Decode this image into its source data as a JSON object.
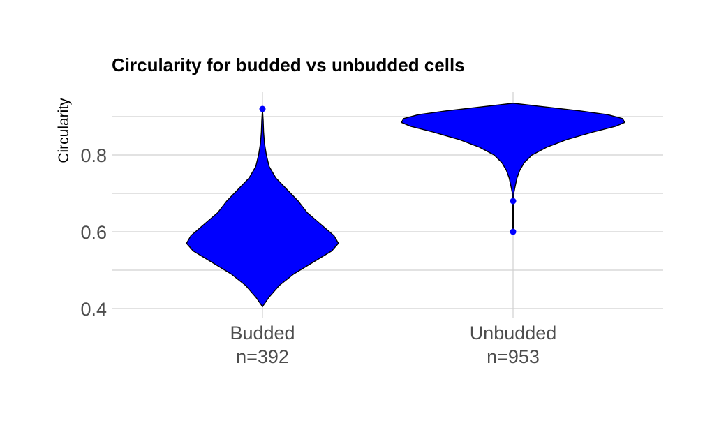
{
  "chart_data": {
    "type": "violin",
    "title": "Circularity for budded vs unbudded cells",
    "xlabel": "",
    "ylabel": "Circularity",
    "ylim": [
      0.38,
      0.96
    ],
    "yticks": [
      0.4,
      0.6,
      0.8
    ],
    "y_minor_gridlines": [
      0.5,
      0.7,
      0.9
    ],
    "grid": true,
    "fill_color": "#0000ff",
    "outline_color": "#000000",
    "categories": [
      {
        "label": "Budded",
        "count_label": "n=392",
        "n": 392,
        "y_min": 0.405,
        "y_max": 0.92,
        "density_profile": [
          [
            0.405,
            0.0
          ],
          [
            0.41,
            0.012
          ],
          [
            0.43,
            0.06
          ],
          [
            0.46,
            0.15
          ],
          [
            0.49,
            0.28
          ],
          [
            0.52,
            0.45
          ],
          [
            0.55,
            0.62
          ],
          [
            0.57,
            0.68
          ],
          [
            0.59,
            0.64
          ],
          [
            0.62,
            0.52
          ],
          [
            0.65,
            0.4
          ],
          [
            0.68,
            0.32
          ],
          [
            0.71,
            0.22
          ],
          [
            0.74,
            0.12
          ],
          [
            0.77,
            0.06
          ],
          [
            0.8,
            0.035
          ],
          [
            0.83,
            0.018
          ],
          [
            0.86,
            0.01
          ],
          [
            0.89,
            0.006
          ],
          [
            0.92,
            0.0
          ]
        ],
        "outliers": [
          0.92
        ]
      },
      {
        "label": "Unbudded",
        "count_label": "n=953",
        "n": 953,
        "y_min": 0.6,
        "y_max": 0.935,
        "density_profile": [
          [
            0.6,
            0.0
          ],
          [
            0.62,
            0.004
          ],
          [
            0.65,
            0.004
          ],
          [
            0.68,
            0.005
          ],
          [
            0.7,
            0.006
          ],
          [
            0.72,
            0.02
          ],
          [
            0.74,
            0.035
          ],
          [
            0.76,
            0.06
          ],
          [
            0.78,
            0.1
          ],
          [
            0.8,
            0.17
          ],
          [
            0.82,
            0.3
          ],
          [
            0.84,
            0.48
          ],
          [
            0.86,
            0.72
          ],
          [
            0.875,
            0.92
          ],
          [
            0.885,
            1.0
          ],
          [
            0.895,
            0.98
          ],
          [
            0.905,
            0.85
          ],
          [
            0.915,
            0.6
          ],
          [
            0.925,
            0.3
          ],
          [
            0.935,
            0.0
          ]
        ],
        "outliers": [
          0.68,
          0.6
        ]
      }
    ]
  }
}
